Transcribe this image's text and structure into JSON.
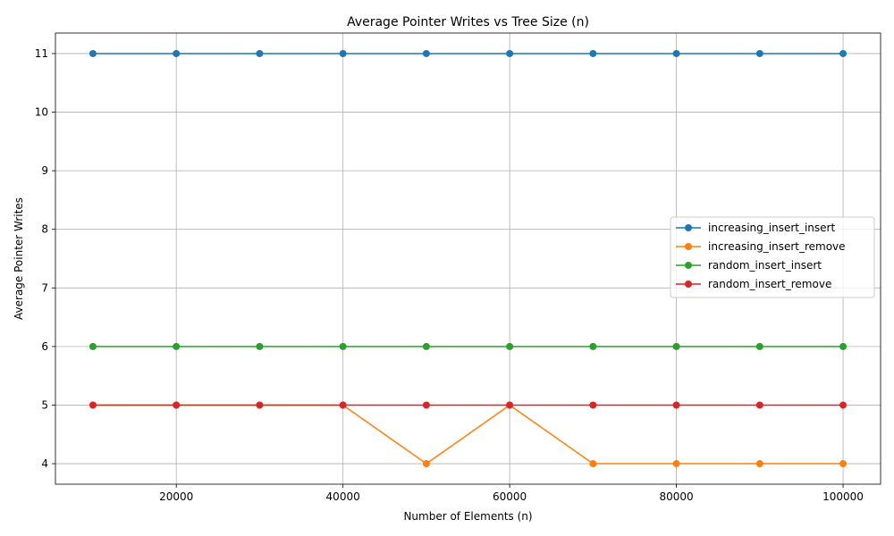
{
  "chart_data": {
    "type": "line",
    "title": "Average Pointer Writes vs Tree Size (n)",
    "xlabel": "Number of Elements (n)",
    "ylabel": "Average Pointer Writes",
    "x": [
      10000,
      20000,
      30000,
      40000,
      50000,
      60000,
      70000,
      80000,
      90000,
      100000
    ],
    "xlim": [
      5500,
      104500
    ],
    "ylim": [
      3.65,
      11.35
    ],
    "xticks": [
      "20000",
      "40000",
      "60000",
      "80000",
      "100000"
    ],
    "yticks": [
      "4",
      "5",
      "6",
      "7",
      "8",
      "9",
      "10",
      "11"
    ],
    "grid": true,
    "legend_position": "center-right",
    "series": [
      {
        "name": "increasing_insert_insert",
        "color": "#1f77b4",
        "values": [
          11,
          11,
          11,
          11,
          11,
          11,
          11,
          11,
          11,
          11
        ]
      },
      {
        "name": "increasing_insert_remove",
        "color": "#ff7f0e",
        "values": [
          5,
          5,
          5,
          5,
          4,
          5,
          4,
          4,
          4,
          4
        ]
      },
      {
        "name": "random_insert_insert",
        "color": "#2ca02c",
        "values": [
          6,
          6,
          6,
          6,
          6,
          6,
          6,
          6,
          6,
          6
        ]
      },
      {
        "name": "random_insert_remove",
        "color": "#d62728",
        "values": [
          5,
          5,
          5,
          5,
          5,
          5,
          5,
          5,
          5,
          5
        ]
      }
    ]
  }
}
